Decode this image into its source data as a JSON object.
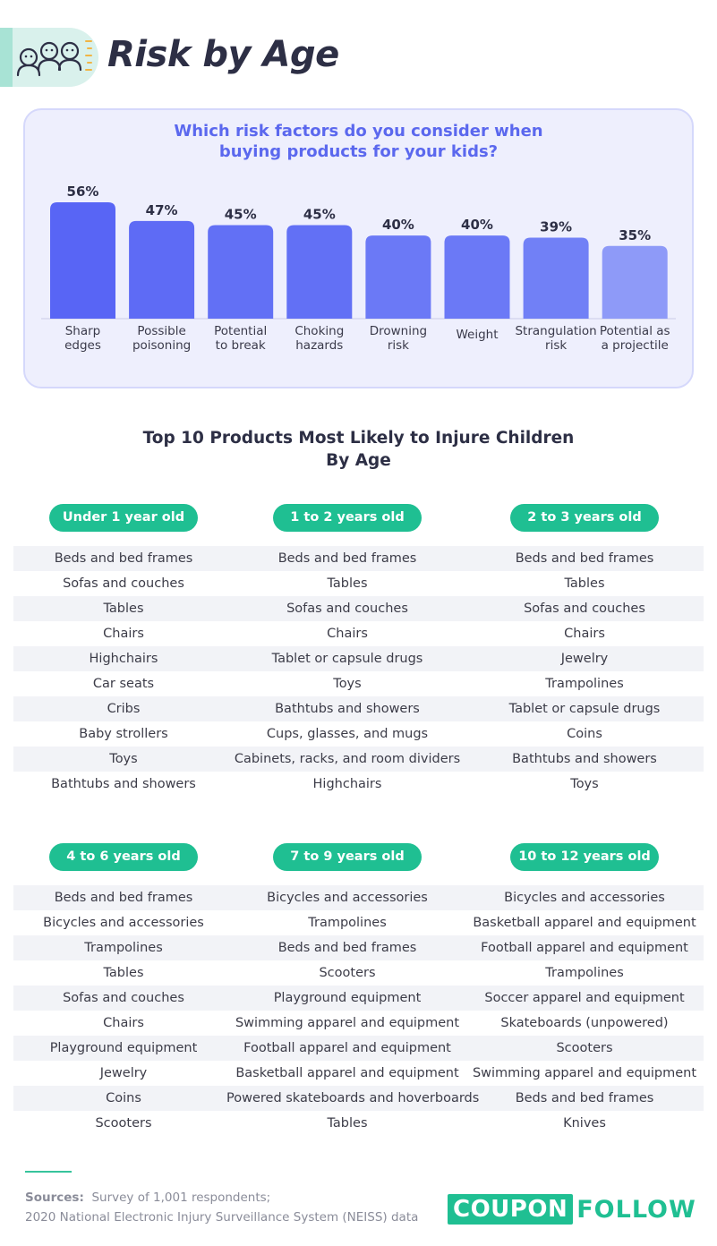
{
  "header": {
    "title": "Risk by Age",
    "icon": "people-group-icon"
  },
  "chart_data": {
    "type": "bar",
    "title_lines": [
      "Which risk factors do you consider when",
      "buying products for your kids?"
    ],
    "categories": [
      [
        "Sharp",
        "edges"
      ],
      [
        "Possible",
        "poisoning"
      ],
      [
        "Potential",
        "to break"
      ],
      [
        "Choking",
        "hazards"
      ],
      [
        "Drowning",
        "risk"
      ],
      [
        "Weight"
      ],
      [
        "Strangulation",
        "risk"
      ],
      [
        "Potential as",
        "a projectile"
      ]
    ],
    "values": [
      56,
      47,
      45,
      45,
      40,
      40,
      39,
      35
    ],
    "value_labels": [
      "56%",
      "47%",
      "45%",
      "45%",
      "40%",
      "40%",
      "39%",
      "35%"
    ],
    "unit": "%",
    "ylim": [
      0,
      56
    ],
    "grid": false,
    "colors": [
      "#5865f5",
      "#5e6bf5",
      "#6270f5",
      "#6270f5",
      "#6b79f6",
      "#6b79f6",
      "#7180f6",
      "#8e9af8"
    ]
  },
  "products": {
    "title_lines": [
      "Top 10 Products Most Likely to Injure Children",
      "By Age"
    ],
    "rows": [
      {
        "columns": [
          {
            "label": "Under 1 year old",
            "items": [
              "Beds and bed frames",
              "Sofas and couches",
              "Tables",
              "Chairs",
              "Highchairs",
              "Car seats",
              "Cribs",
              "Baby strollers",
              "Toys",
              "Bathtubs and showers"
            ]
          },
          {
            "label": "1 to 2 years old",
            "items": [
              "Beds and bed frames",
              "Tables",
              "Sofas and couches",
              "Chairs",
              "Tablet or capsule drugs",
              "Toys",
              "Bathtubs and showers",
              "Cups, glasses, and mugs",
              "Cabinets, racks, and room dividers",
              "Highchairs"
            ]
          },
          {
            "label": "2 to 3 years old",
            "items": [
              "Beds and bed frames",
              "Tables",
              "Sofas and couches",
              "Chairs",
              "Jewelry",
              "Trampolines",
              "Tablet or capsule drugs",
              "Coins",
              "Bathtubs and showers",
              "Toys"
            ]
          }
        ]
      },
      {
        "columns": [
          {
            "label": "4 to 6 years old",
            "items": [
              "Beds and bed frames",
              "Bicycles and accessories",
              "Trampolines",
              "Tables",
              "Sofas and couches",
              "Chairs",
              "Playground equipment",
              "Jewelry",
              "Coins",
              "Scooters"
            ]
          },
          {
            "label": "7 to 9 years old",
            "items": [
              "Bicycles and accessories",
              "Trampolines",
              "Beds and bed frames",
              "Scooters",
              "Playground equipment",
              "Swimming apparel and equipment",
              "Football apparel and equipment",
              "Basketball apparel and equipment",
              "Powered skateboards and hoverboards",
              "Tables"
            ]
          },
          {
            "label": "10 to 12 years old",
            "items": [
              "Bicycles and accessories",
              "Basketball apparel and equipment",
              "Football apparel and equipment",
              "Trampolines",
              "Soccer apparel and equipment",
              "Skateboards (unpowered)",
              "Scooters",
              "Swimming apparel and equipment",
              "Beds and bed frames",
              "Knives"
            ]
          }
        ]
      }
    ]
  },
  "footer": {
    "sources_label": "Sources:",
    "sources_line1": "Survey of 1,001 respondents;",
    "sources_line2": "2020 National Electronic Injury Surveillance System (NEISS) data",
    "logo_box": "COUPON",
    "logo_text": "FOLLOW"
  },
  "colors": {
    "accent_green": "#1fbf92",
    "chart_blue": "#5b68ee",
    "panel_bg": "#eeeffd"
  }
}
